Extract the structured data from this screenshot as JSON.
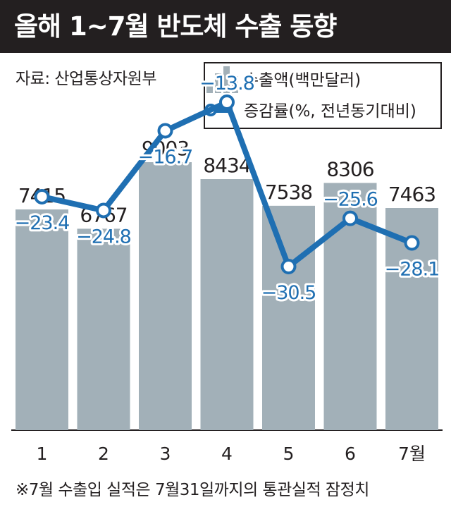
{
  "header": {
    "title": "올해 1~7월 반도체 수출 동향"
  },
  "source": "자료: 산업통상자원부",
  "footnote": "※7월 수출입 실적은 7월31일까지의 통관실적 잠정치",
  "colors": {
    "bar": "#a2b0b8",
    "line": "#1f6fb2",
    "header_bg": "#231f20",
    "text": "#231f20"
  },
  "chart_data": {
    "type": "bar+line",
    "categories": [
      "1",
      "2",
      "3",
      "4",
      "5",
      "6",
      "7월"
    ],
    "series": [
      {
        "name": "수출액(백만달러)",
        "type": "bar",
        "values": [
          7415,
          6767,
          9003,
          8434,
          7538,
          8306,
          7463
        ]
      },
      {
        "name": "증감률(%, 전년동기대비)",
        "type": "line",
        "values": [
          -23.4,
          -24.8,
          -16.7,
          -13.8,
          -30.5,
          -25.6,
          -28.1
        ]
      }
    ],
    "legend": {
      "position": "top-right"
    }
  }
}
